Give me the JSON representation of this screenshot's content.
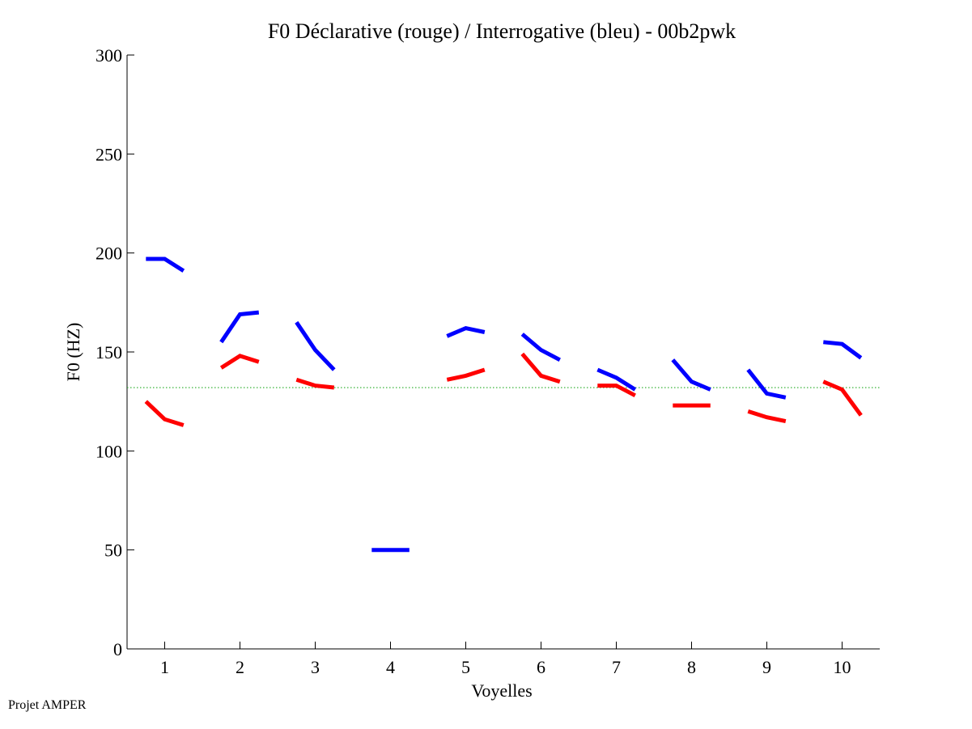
{
  "footer": "Projet AMPER",
  "colors": {
    "declarative": "#ff0000",
    "interrogative": "#0000ff",
    "reference": "#22aa22",
    "axis": "#000000"
  },
  "chart_data": {
    "type": "line",
    "title": "F0 Déclarative (rouge) / Interrogative (bleu) - 00b2pwk",
    "xlabel": "Voyelles",
    "ylabel": "F0 (HZ)",
    "xlim": [
      0.5,
      10.5
    ],
    "ylim": [
      0,
      300
    ],
    "xticks": [
      1,
      2,
      3,
      4,
      5,
      6,
      7,
      8,
      9,
      10
    ],
    "yticks": [
      0,
      50,
      100,
      150,
      200,
      250,
      300
    ],
    "reference_line": {
      "y": 132,
      "style": "dotted"
    },
    "grid": false,
    "series": [
      {
        "key": "declarative",
        "color": "#ff0000",
        "segments": [
          {
            "vowel": 1,
            "points": [
              [
                0.75,
                125
              ],
              [
                1.0,
                116
              ],
              [
                1.25,
                113
              ]
            ]
          },
          {
            "vowel": 2,
            "points": [
              [
                1.75,
                142
              ],
              [
                2.0,
                148
              ],
              [
                2.25,
                145
              ]
            ]
          },
          {
            "vowel": 3,
            "points": [
              [
                2.75,
                136
              ],
              [
                3.0,
                133
              ],
              [
                3.25,
                132
              ]
            ]
          },
          {
            "vowel": 5,
            "points": [
              [
                4.75,
                136
              ],
              [
                5.0,
                138
              ],
              [
                5.25,
                141
              ]
            ]
          },
          {
            "vowel": 6,
            "points": [
              [
                5.75,
                149
              ],
              [
                6.0,
                138
              ],
              [
                6.25,
                135
              ]
            ]
          },
          {
            "vowel": 7,
            "points": [
              [
                6.75,
                133
              ],
              [
                7.0,
                133
              ],
              [
                7.25,
                128
              ]
            ]
          },
          {
            "vowel": 8,
            "points": [
              [
                7.75,
                123
              ],
              [
                8.0,
                123
              ],
              [
                8.25,
                123
              ]
            ]
          },
          {
            "vowel": 9,
            "points": [
              [
                8.75,
                120
              ],
              [
                9.0,
                117
              ],
              [
                9.25,
                115
              ]
            ]
          },
          {
            "vowel": 10,
            "points": [
              [
                9.75,
                135
              ],
              [
                10.0,
                131
              ],
              [
                10.25,
                118
              ]
            ]
          }
        ]
      },
      {
        "key": "interrogative",
        "color": "#0000ff",
        "segments": [
          {
            "vowel": 1,
            "points": [
              [
                0.75,
                197
              ],
              [
                1.0,
                197
              ],
              [
                1.25,
                191
              ]
            ]
          },
          {
            "vowel": 2,
            "points": [
              [
                1.75,
                155
              ],
              [
                2.0,
                169
              ],
              [
                2.25,
                170
              ]
            ]
          },
          {
            "vowel": 3,
            "points": [
              [
                2.75,
                165
              ],
              [
                3.0,
                151
              ],
              [
                3.25,
                141
              ]
            ]
          },
          {
            "vowel": 4,
            "points": [
              [
                3.75,
                50
              ],
              [
                4.0,
                50
              ],
              [
                4.25,
                50
              ]
            ]
          },
          {
            "vowel": 5,
            "points": [
              [
                4.75,
                158
              ],
              [
                5.0,
                162
              ],
              [
                5.25,
                160
              ]
            ]
          },
          {
            "vowel": 6,
            "points": [
              [
                5.75,
                159
              ],
              [
                6.0,
                151
              ],
              [
                6.25,
                146
              ]
            ]
          },
          {
            "vowel": 7,
            "points": [
              [
                6.75,
                141
              ],
              [
                7.0,
                137
              ],
              [
                7.25,
                131
              ]
            ]
          },
          {
            "vowel": 8,
            "points": [
              [
                7.75,
                146
              ],
              [
                8.0,
                135
              ],
              [
                8.25,
                131
              ]
            ]
          },
          {
            "vowel": 9,
            "points": [
              [
                8.75,
                141
              ],
              [
                9.0,
                129
              ],
              [
                9.25,
                127
              ]
            ]
          },
          {
            "vowel": 10,
            "points": [
              [
                9.75,
                155
              ],
              [
                10.0,
                154
              ],
              [
                10.25,
                147
              ]
            ]
          }
        ]
      }
    ]
  }
}
